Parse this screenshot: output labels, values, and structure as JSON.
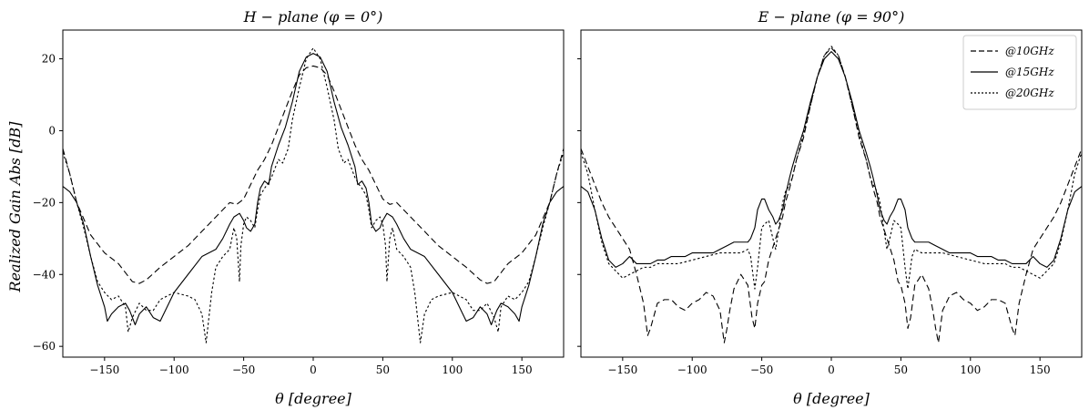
{
  "chart_data": {
    "type": "line",
    "ylabel": "Realized Gain Abs [dB]",
    "colors": {
      "series": "#000000",
      "frame": "#000000",
      "background": "#ffffff"
    },
    "legend": {
      "placement": "top-right",
      "entries": [
        {
          "label": "@10GHz",
          "linestyle": "dashed"
        },
        {
          "label": "@15GHz",
          "linestyle": "solid"
        },
        {
          "label": "@20GHz",
          "linestyle": "dotted"
        }
      ]
    },
    "panels": [
      {
        "title": "H − plane (φ = 0°)",
        "xlabel": "θ [degree]",
        "xlim": [
          -180,
          180
        ],
        "ylim": [
          -63,
          28
        ],
        "xticks": [
          -150,
          -100,
          -50,
          0,
          50,
          100,
          150
        ],
        "yticks": [
          -60,
          -40,
          -20,
          0,
          20
        ],
        "grid": false,
        "series": [
          {
            "label": "@10GHz",
            "linestyle": "dashed",
            "x": [
              0,
              5,
              10,
              15,
              20,
              25,
              30,
              35,
              40,
              45,
              50,
              55,
              60,
              70,
              80,
              90,
              100,
              110,
              120,
              125,
              130,
              140,
              150,
              160,
              170,
              175,
              180
            ],
            "y": [
              18,
              17.5,
              15.5,
              11,
              6,
              1,
              -4,
              -8,
              -11,
              -15,
              -19,
              -20.5,
              -20,
              -24,
              -28,
              -32,
              -35,
              -38,
              -41.5,
              -42.5,
              -42,
              -37,
              -34,
              -29,
              -20,
              -12,
              -5
            ]
          },
          {
            "label": "@15GHz",
            "linestyle": "solid",
            "x": [
              0,
              5,
              10,
              15,
              20,
              25,
              30,
              32,
              35,
              38,
              40,
              42,
              45,
              48,
              50,
              53,
              57,
              60,
              65,
              70,
              80,
              90,
              100,
              105,
              110,
              115,
              120,
              125,
              128,
              130,
              132,
              135,
              140,
              145,
              148,
              150,
              155,
              160,
              165,
              170,
              175,
              180
            ],
            "y": [
              21.5,
              20.5,
              16.5,
              8,
              1,
              -4,
              -10,
              -15,
              -14,
              -16,
              -20,
              -26,
              -28,
              -27,
              -25,
              -23,
              -24,
              -26,
              -30,
              -33,
              -35,
              -40,
              -45,
              -49,
              -53,
              -52,
              -49,
              -51,
              -54,
              -52,
              -50,
              -48,
              -49,
              -51,
              -53,
              -49,
              -43,
              -35,
              -26,
              -20,
              -17,
              -15.5
            ]
          },
          {
            "label": "@20GHz",
            "linestyle": "dotted",
            "x": [
              0,
              5,
              10,
              15,
              18,
              20,
              22,
              25,
              30,
              33,
              35,
              38,
              40,
              42,
              45,
              48,
              50,
              52,
              53,
              55,
              57,
              58,
              60,
              65,
              70,
              73,
              75,
              77,
              80,
              85,
              90,
              100,
              110,
              115,
              120,
              125,
              130,
              133,
              135,
              140,
              145,
              150,
              155,
              160,
              165,
              170,
              175,
              180
            ],
            "y": [
              23,
              20,
              12,
              3,
              -5,
              -7,
              -9,
              -8,
              -13,
              -15,
              -16,
              -18,
              -22,
              -27,
              -25,
              -24,
              -26,
              -32,
              -42,
              -30,
              -27,
              -29,
              -33,
              -35,
              -38,
              -45,
              -52,
              -59,
              -51,
              -47,
              -46,
              -45,
              -47,
              -50,
              -50,
              -48,
              -52,
              -56,
              -49,
              -46,
              -47,
              -45,
              -42,
              -35,
              -27,
              -20,
              -12,
              -6
            ]
          }
        ]
      },
      {
        "title": "E − plane (φ = 90°)",
        "xlabel": "θ [degree]",
        "xlim": [
          -180,
          180
        ],
        "ylim": [
          -63,
          28
        ],
        "xticks": [
          -150,
          -100,
          -50,
          0,
          50,
          100,
          150
        ],
        "yticks": [
          -60,
          -40,
          -20,
          0,
          20
        ],
        "grid": false,
        "series": [
          {
            "label": "@10GHz",
            "linestyle": "dashed",
            "x": [
              0,
              5,
              10,
              15,
              20,
              25,
              28,
              30,
              33,
              35,
              40,
              45,
              48,
              50,
              53,
              55,
              57,
              60,
              65,
              70,
              73,
              75,
              77,
              80,
              85,
              90,
              95,
              100,
              105,
              110,
              115,
              120,
              125,
              130,
              132,
              135,
              140,
              145,
              150,
              155,
              160,
              165,
              170,
              175,
              180
            ],
            "y": [
              23,
              21,
              15,
              7,
              -2,
              -8,
              -13,
              -16,
              -20,
              -24,
              -30,
              -36,
              -42,
              -43,
              -48,
              -55,
              -52,
              -43,
              -40,
              -44,
              -50,
              -55,
              -59,
              -50,
              -46,
              -45,
              -47,
              -48,
              -50,
              -49,
              -47,
              -47,
              -48,
              -55,
              -57,
              -48,
              -40,
              -33,
              -30,
              -27,
              -24,
              -20,
              -15,
              -10,
              -5
            ]
          },
          {
            "label": "@15GHz",
            "linestyle": "solid",
            "x": [
              0,
              5,
              10,
              15,
              20,
              25,
              28,
              30,
              33,
              35,
              38,
              40,
              42,
              45,
              48,
              50,
              53,
              55,
              58,
              60,
              65,
              70,
              75,
              80,
              85,
              90,
              95,
              100,
              105,
              110,
              115,
              120,
              125,
              130,
              135,
              140,
              145,
              150,
              155,
              160,
              165,
              170,
              175,
              180
            ],
            "y": [
              22,
              20,
              15,
              8,
              0,
              -6,
              -10,
              -13,
              -18,
              -22,
              -25,
              -26,
              -24,
              -22,
              -19,
              -19,
              -22,
              -27,
              -30,
              -31,
              -31,
              -31,
              -32,
              -33,
              -34,
              -34,
              -34,
              -34,
              -35,
              -35,
              -35,
              -36,
              -36,
              -37,
              -37,
              -37,
              -35,
              -37,
              -38,
              -36,
              -30,
              -22,
              -17,
              -15.5
            ]
          },
          {
            "label": "@20GHz",
            "linestyle": "dotted",
            "x": [
              0,
              5,
              10,
              15,
              20,
              25,
              28,
              30,
              33,
              35,
              38,
              40,
              42,
              45,
              48,
              50,
              53,
              55,
              58,
              60,
              65,
              70,
              80,
              90,
              100,
              110,
              115,
              120,
              125,
              130,
              135,
              140,
              145,
              150,
              155,
              160,
              165,
              170,
              175,
              180
            ],
            "y": [
              23.5,
              21,
              15,
              7,
              -1,
              -8,
              -13,
              -15,
              -17,
              -20,
              -28,
              -33,
              -30,
              -25,
              -26,
              -27,
              -38,
              -44,
              -35,
              -33,
              -34,
              -34,
              -34,
              -35,
              -36,
              -37,
              -37,
              -37,
              -37,
              -38,
              -38,
              -39,
              -40,
              -41,
              -39,
              -37,
              -31,
              -22,
              -12,
              -6
            ]
          }
        ]
      }
    ]
  }
}
